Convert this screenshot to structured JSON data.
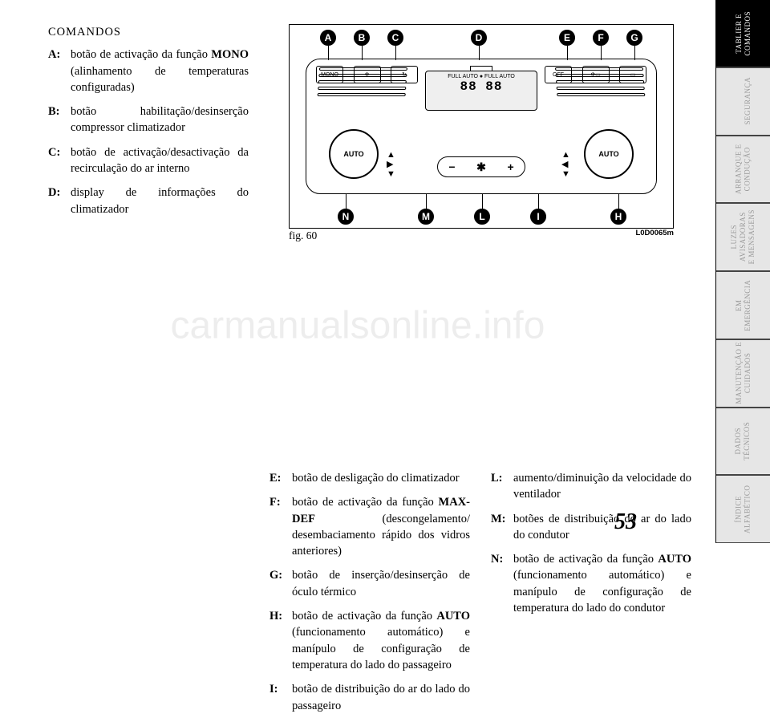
{
  "page_number": "53",
  "watermark": "carmanualsonline.info",
  "heading": "COMANDOS",
  "left_col_defs": [
    {
      "key": "A:",
      "bold": "MONO",
      "pre": "botão de activação da função ",
      "post": " (alinhamento de temperaturas configuradas)"
    },
    {
      "key": "B:",
      "pre": "botão habilitação/desinserção compressor climatizador",
      "bold": "",
      "post": ""
    },
    {
      "key": "C:",
      "pre": "botão de activação/desactivação da recirculação do ar interno",
      "bold": "",
      "post": ""
    },
    {
      "key": "D:",
      "pre": "display de informações do climatizador",
      "bold": "",
      "post": ""
    }
  ],
  "mid_col_defs": [
    {
      "key": "E:",
      "pre": "botão de desligação do climatizador",
      "bold": "",
      "post": ""
    },
    {
      "key": "F:",
      "bold": "MAX-DEF",
      "pre": "botão de activação da função ",
      "post": " (descongelamento/ desembaciamento rápido dos vidros anteriores)"
    },
    {
      "key": "G:",
      "pre": "botão de inserção/desinserção de óculo térmico",
      "bold": "",
      "post": ""
    },
    {
      "key": "H:",
      "bold": "AUTO",
      "pre": "botão de activação da função ",
      "post": " (funcionamento automático) e manípulo de configuração de temperatura do lado do passageiro"
    },
    {
      "key": "I:",
      "pre": "botão de distribuição do ar do lado do passageiro",
      "bold": "",
      "post": ""
    }
  ],
  "right_col_defs": [
    {
      "key": "L:",
      "pre": "aumento/diminuição da velocidade do ventilador",
      "bold": "",
      "post": ""
    },
    {
      "key": "M:",
      "pre": "botões de distribuição do ar do lado do condutor",
      "bold": "",
      "post": ""
    },
    {
      "key": "N:",
      "bold": "AUTO",
      "pre": "botão de activação da função ",
      "post": " (funcionamento automático) e manípulo de configuração de temperatura do lado do condutor"
    }
  ],
  "diagram": {
    "fig_label": "fig. 60",
    "fig_code": "L0D0065m",
    "callouts_top": [
      "A",
      "B",
      "C",
      "D",
      "E",
      "F",
      "G"
    ],
    "callouts_bottom": [
      "N",
      "M",
      "L",
      "I",
      "H"
    ],
    "buttons": {
      "mono": "MONO",
      "off": "OFF",
      "auto": "AUTO",
      "full_auto": "FULL AUTO  ●  FULL AUTO",
      "digits": "88    88"
    }
  },
  "sidebar": [
    {
      "lines": [
        "TABLIER E",
        "COMANDOS"
      ],
      "active": true
    },
    {
      "lines": [
        "",
        "SEGURANÇA"
      ],
      "active": false
    },
    {
      "lines": [
        "ARRANQUE E",
        "CONDUÇÃO"
      ],
      "active": false
    },
    {
      "lines": [
        "LUZES",
        "AVISADORAS",
        "E MENSAGENS"
      ],
      "active": false
    },
    {
      "lines": [
        "EM",
        "EMERGÊNCIA"
      ],
      "active": false
    },
    {
      "lines": [
        "MANUTENÇÃO E",
        "CUIDADOS"
      ],
      "active": false
    },
    {
      "lines": [
        "DADOS",
        "TÉCNICOS"
      ],
      "active": false
    },
    {
      "lines": [
        "ÍNDICE",
        "ALFABÉTICO"
      ],
      "active": false
    }
  ]
}
